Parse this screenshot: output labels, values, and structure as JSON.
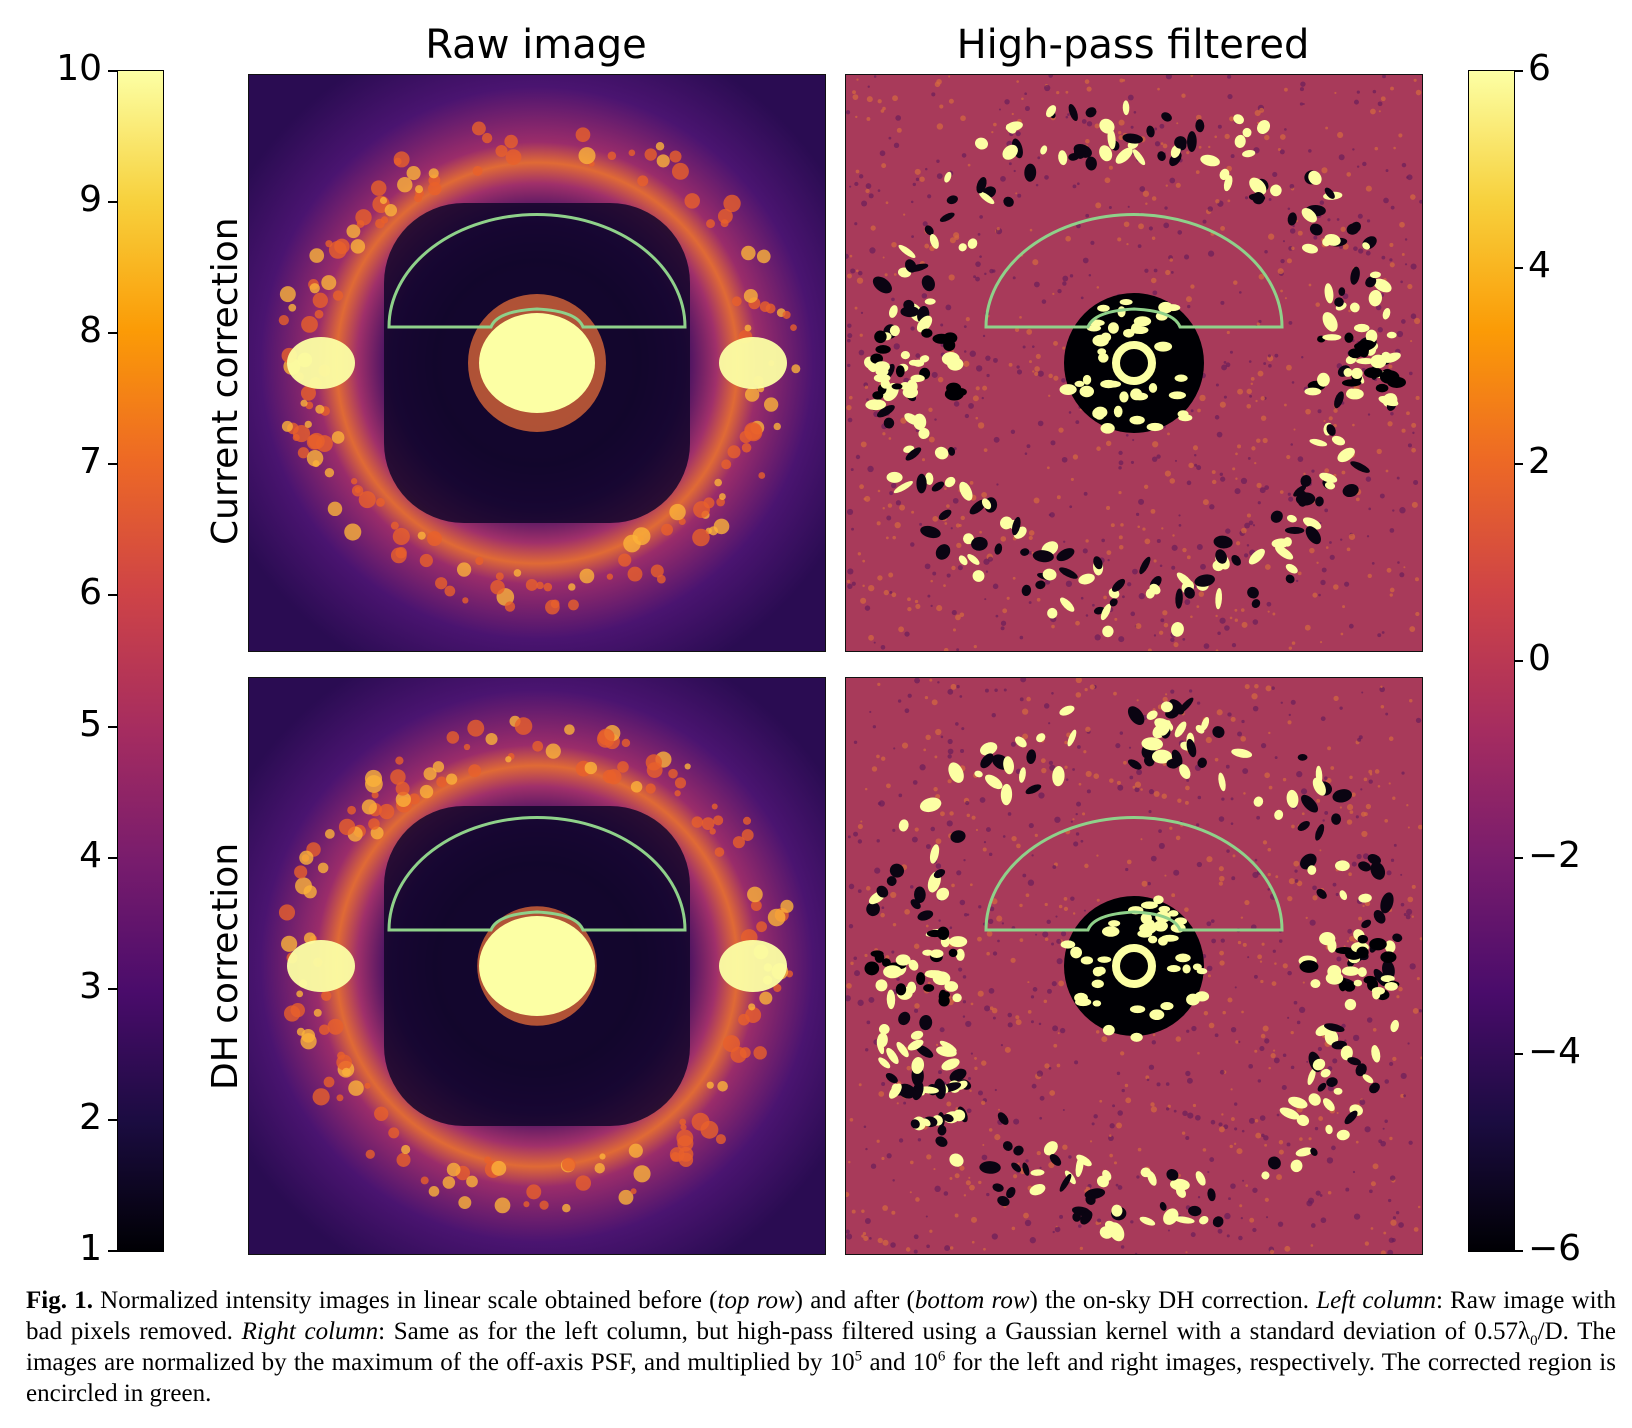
{
  "figure": {
    "column_titles": [
      "Raw image",
      "High-pass filtered"
    ],
    "row_labels": [
      "Current correction",
      "DH correction"
    ],
    "panels": [
      {
        "name": "raw-current",
        "kind": "raw",
        "inner_radius": 0.3
      },
      {
        "name": "hp-current",
        "kind": "hp"
      },
      {
        "name": "raw-dh",
        "kind": "raw",
        "inner_radius": 0.26
      },
      {
        "name": "hp-dh",
        "kind": "hp"
      }
    ],
    "colormap": "inferno",
    "region_outline_color": "#8fd18a",
    "left_colorbar": {
      "ticks": [
        "10",
        "9",
        "8",
        "7",
        "6",
        "5",
        "4",
        "3",
        "2",
        "1"
      ],
      "min": 1,
      "max": 10
    },
    "right_colorbar": {
      "ticks": [
        "6",
        "4",
        "2",
        "0",
        "−2",
        "−4",
        "−6"
      ],
      "min": -6,
      "max": 6
    }
  },
  "caption": {
    "label": "Fig. 1.",
    "s1": " Normalized intensity images in linear scale obtained before (",
    "top_row": "top row",
    "s2": ") and after (",
    "bottom_row": "bottom row",
    "s3": ") the on-sky DH correction. ",
    "left_column": "Left column",
    "s4": ": Raw image with bad pixels removed. ",
    "right_column": "Right column",
    "s5": ": Same as for the left column, but high-pass filtered using a Gaussian kernel with a standard deviation of 0.57λ",
    "sub0": "0",
    "s6": "/D. The images are normalized by the maximum of the off-axis PSF, and multiplied by 10",
    "exp5": "5",
    "s7": " and 10",
    "exp6": "6",
    "s8": " for the left and right images, respectively. The corrected region is encircled in green."
  }
}
